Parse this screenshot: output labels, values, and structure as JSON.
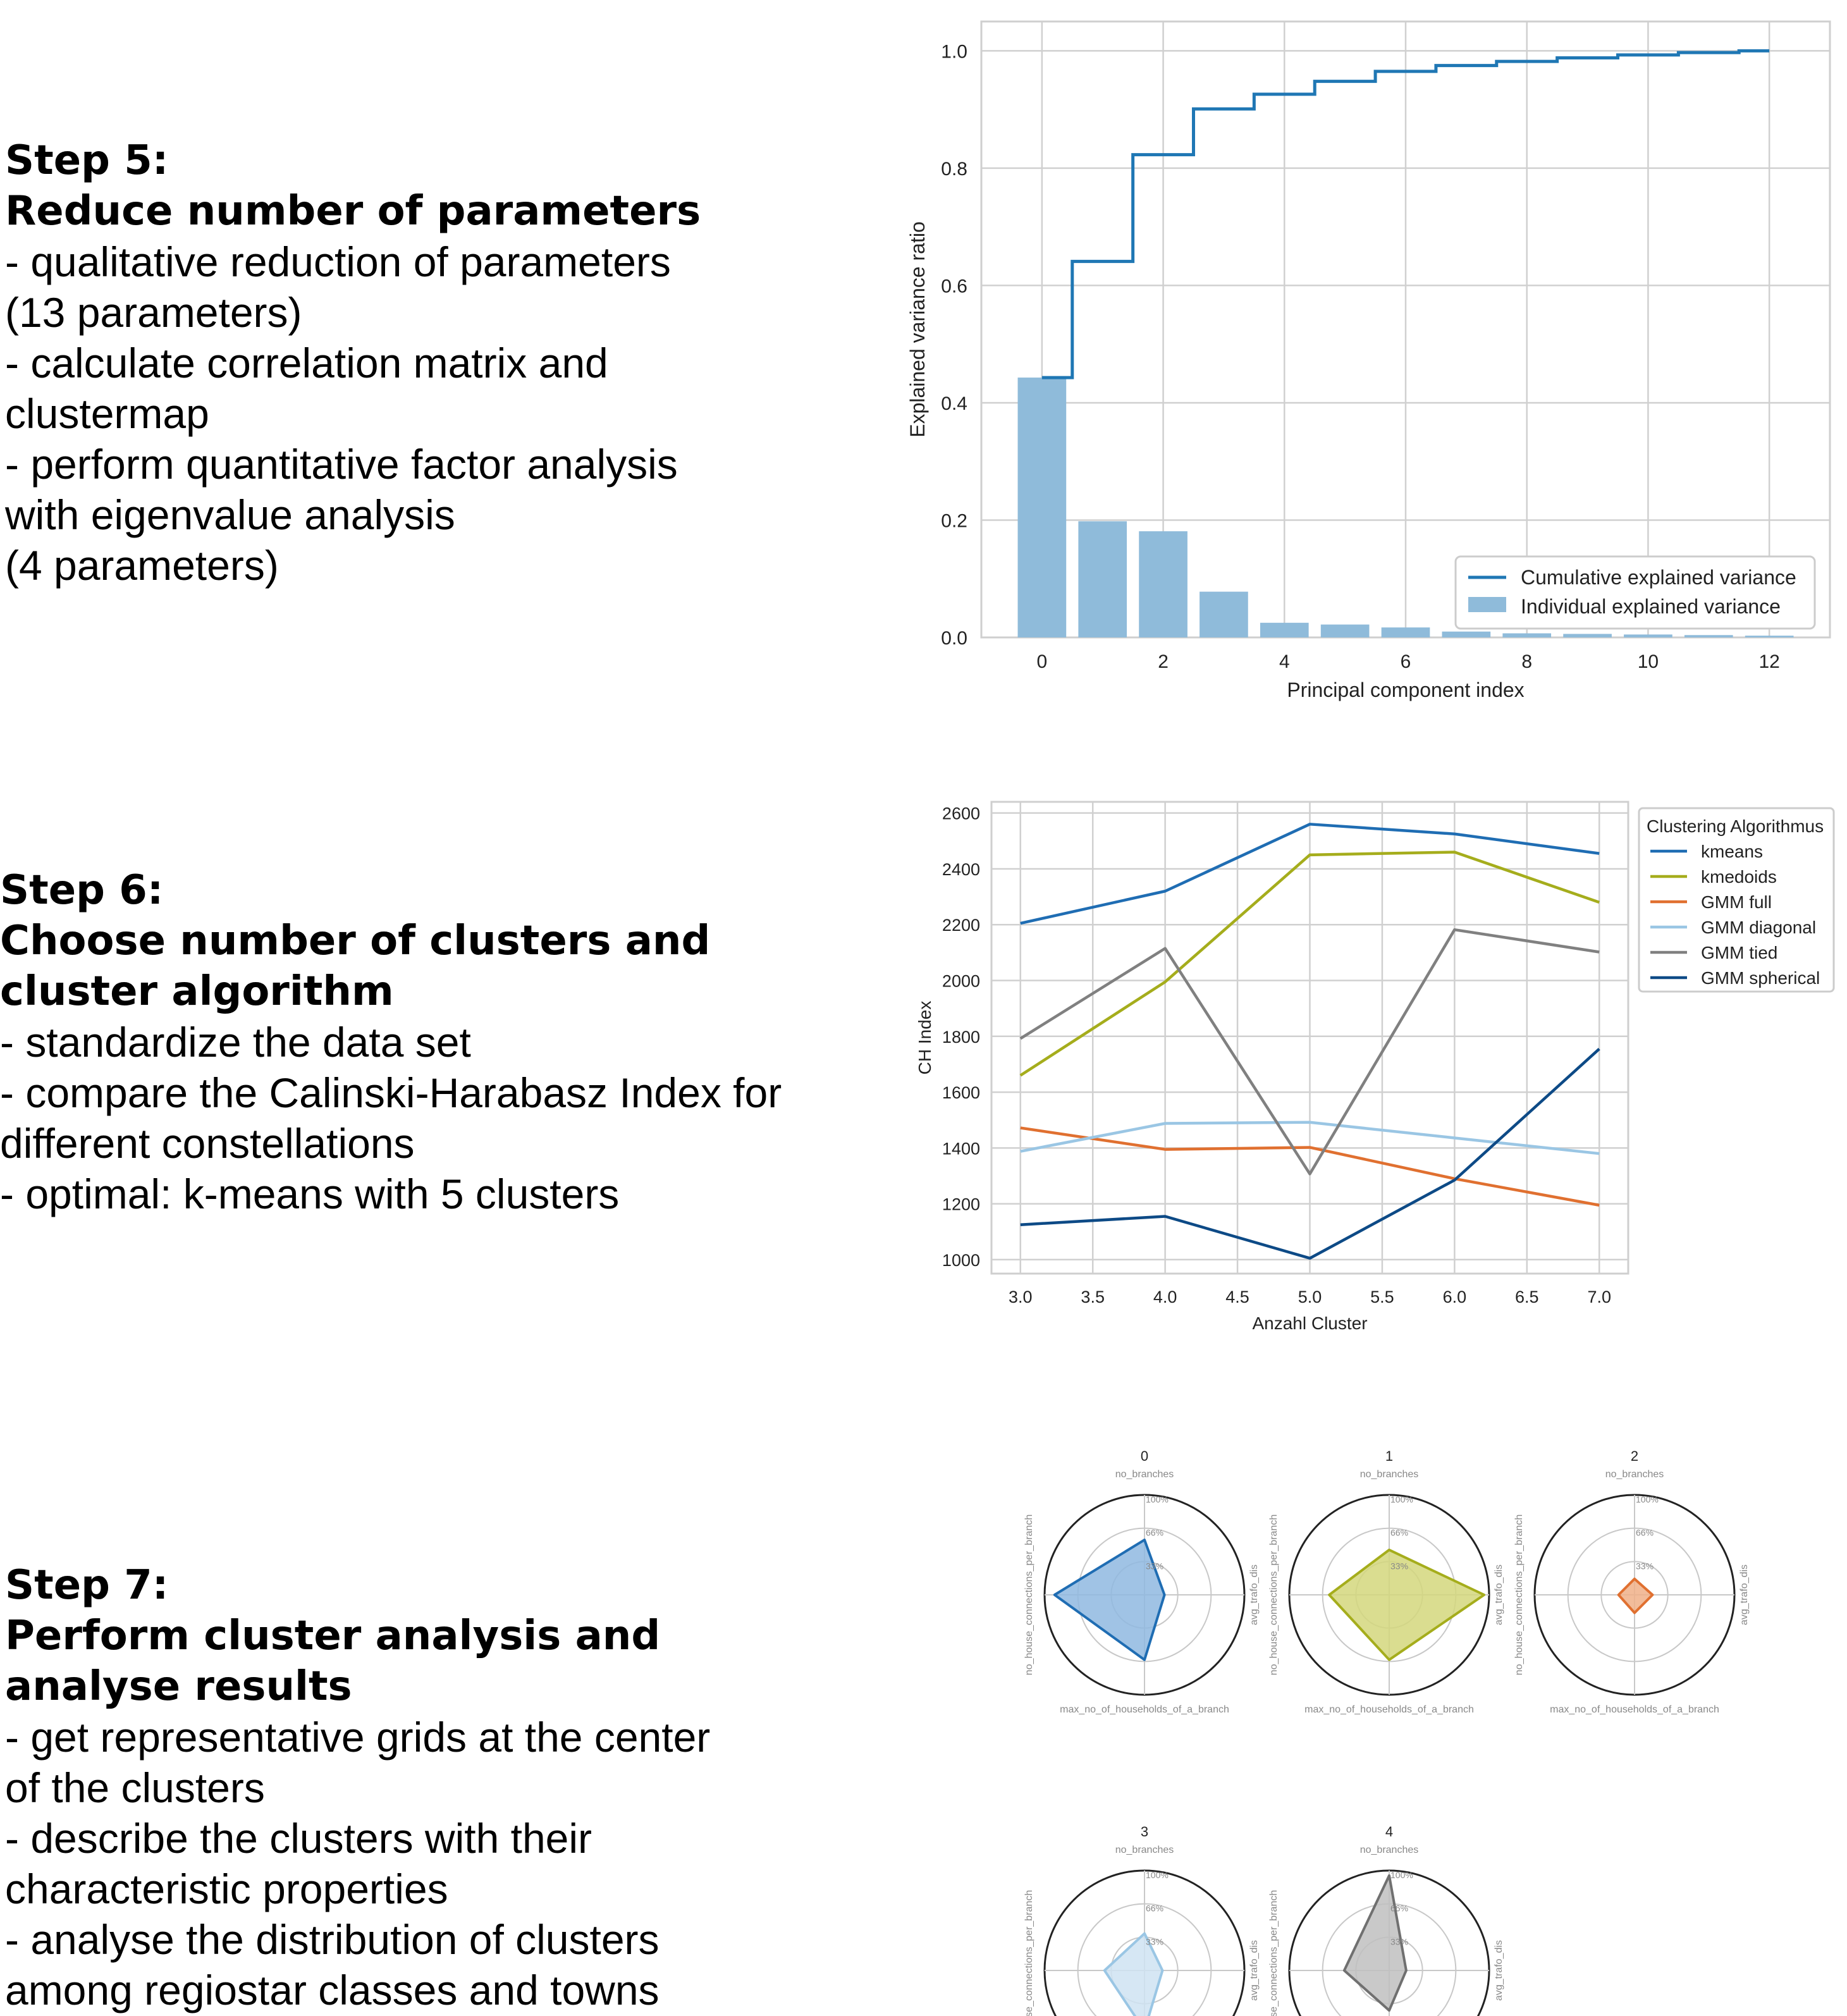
{
  "step5": {
    "heading": [
      "Step 5:",
      "Reduce number of parameters"
    ],
    "bullets": [
      "- qualitative reduction of parameters",
      "(13 parameters)",
      "- calculate correlation matrix and",
      "clustermap",
      "- perform quantitative factor analysis",
      "with eigenvalue analysis",
      "(4 parameters)"
    ]
  },
  "step6": {
    "heading": [
      "Step 6:",
      "Choose number of clusters and",
      "cluster algorithm"
    ],
    "bullets": [
      "- standardize the data set",
      "- compare the Calinski-Harabasz Index for",
      "different constellations",
      "- optimal: k-means with 5 clusters"
    ]
  },
  "step7": {
    "heading": [
      "Step 7:",
      "Perform cluster analysis and",
      "analyse results"
    ],
    "bullets": [
      "- get representative grids at the center",
      "of the clusters",
      "- describe the clusters with their",
      "characteristic properties",
      "- analyse the distribution of clusters",
      "among regiostar classes and towns"
    ]
  },
  "chart_data": [
    {
      "type": "bar",
      "xlabel": "Principal component index",
      "ylabel": "Explained variance ratio",
      "xlim": [
        -1,
        13
      ],
      "ylim": [
        0,
        1.05
      ],
      "xticks": [
        0,
        2,
        4,
        6,
        8,
        10,
        12
      ],
      "yticks": [
        0.0,
        0.2,
        0.4,
        0.6,
        0.8,
        1.0
      ],
      "grid": true,
      "legend_position": "lower-right",
      "x": [
        0,
        1,
        2,
        3,
        4,
        5,
        6,
        7,
        8,
        9,
        10,
        11,
        12
      ],
      "series": [
        {
          "name": "Cumulative explained variance",
          "kind": "step",
          "color": "#1f77b4",
          "values": [
            0.443,
            0.641,
            0.823,
            0.901,
            0.926,
            0.948,
            0.965,
            0.975,
            0.982,
            0.988,
            0.993,
            0.997,
            1.0
          ]
        },
        {
          "name": "Individual explained variance",
          "kind": "bar",
          "color": "#8fbbda",
          "values": [
            0.443,
            0.198,
            0.181,
            0.078,
            0.025,
            0.022,
            0.017,
            0.01,
            0.007,
            0.006,
            0.005,
            0.004,
            0.003
          ]
        }
      ]
    },
    {
      "type": "line",
      "xlabel": "Anzahl Cluster",
      "ylabel": "CH Index",
      "xlim": [
        2.8,
        7.2
      ],
      "ylim": [
        950,
        2640
      ],
      "xticks": [
        3.0,
        3.5,
        4.0,
        4.5,
        5.0,
        5.5,
        6.0,
        6.5,
        7.0
      ],
      "yticks": [
        1000,
        1200,
        1400,
        1600,
        1800,
        2000,
        2200,
        2400,
        2600
      ],
      "grid": true,
      "legend_title": "Clustering Algorithmus",
      "legend_position": "outside-top-right",
      "x": [
        3,
        4,
        5,
        6,
        7
      ],
      "series": [
        {
          "name": "kmeans",
          "color": "#1f6db3",
          "values": [
            2205,
            2320,
            2560,
            2525,
            2455
          ]
        },
        {
          "name": "kmedoids",
          "color": "#a5ad1c",
          "values": [
            1660,
            1995,
            2450,
            2460,
            2280
          ]
        },
        {
          "name": "GMM full",
          "color": "#e07030",
          "values": [
            1472,
            1395,
            1402,
            1290,
            1195
          ]
        },
        {
          "name": "GMM diagonal",
          "color": "#9ac6e4",
          "values": [
            1388,
            1488,
            1492,
            1436,
            1380
          ]
        },
        {
          "name": "GMM tied",
          "color": "#808080",
          "values": [
            1792,
            2115,
            1307,
            2182,
            2102
          ]
        },
        {
          "name": "GMM spherical",
          "color": "#0d4a86",
          "values": [
            1125,
            1155,
            1005,
            1285,
            1755
          ]
        }
      ]
    },
    {
      "type": "radar",
      "axes": [
        "no_branches",
        "avg_trafo_dis",
        "max_no_of_households_of_a_branch",
        "no_house_connections_per_branch"
      ],
      "ring_labels": [
        "33%",
        "66%",
        "100%"
      ],
      "clusters": [
        {
          "label": "0",
          "color": "#1f6db3",
          "fill": "#8fb8e0",
          "values": [
            0.55,
            0.2,
            0.65,
            0.9
          ]
        },
        {
          "label": "1",
          "color": "#a5ad1c",
          "fill": "#d4d77c",
          "values": [
            0.45,
            0.95,
            0.65,
            0.6
          ]
        },
        {
          "label": "2",
          "color": "#e07030",
          "fill": "#f0b088",
          "values": [
            0.16,
            0.18,
            0.18,
            0.16
          ]
        },
        {
          "label": "3",
          "color": "#9ac6e4",
          "fill": "#cfe3f2",
          "values": [
            0.37,
            0.18,
            0.6,
            0.4
          ]
        },
        {
          "label": "4",
          "color": "#707070",
          "fill": "#c0c0c0",
          "values": [
            0.95,
            0.17,
            0.4,
            0.45
          ]
        }
      ]
    }
  ]
}
